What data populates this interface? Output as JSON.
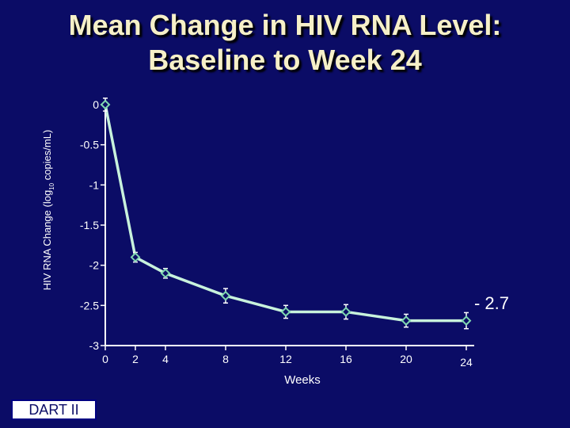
{
  "title": {
    "line1": "Mean Change in HIV RNA Level:",
    "line2": "Baseline to Week 24"
  },
  "badge": "DART II",
  "chart_data": {
    "type": "line",
    "title": "Mean Change in HIV RNA Level: Baseline to Week 24",
    "xlabel": "Weeks",
    "ylabel_main": "HIV RNA Change (log",
    "ylabel_sub": "10",
    "ylabel_tail": " copies/mL)",
    "x": [
      0,
      2,
      4,
      8,
      12,
      16,
      20,
      24
    ],
    "y": [
      0,
      -1.9,
      -2.1,
      -2.38,
      -2.58,
      -2.58,
      -2.69,
      -2.69
    ],
    "error": [
      0.08,
      0.06,
      0.06,
      0.09,
      0.08,
      0.09,
      0.08,
      0.1
    ],
    "xticks": [
      0,
      2,
      4,
      8,
      12,
      16,
      20,
      24
    ],
    "yticks": [
      0,
      -0.5,
      -1,
      -1.5,
      -2,
      -2.5,
      -3
    ],
    "ytick_labels": [
      "0",
      "-0.5",
      "-1",
      "-1.5",
      "-2",
      "-2.5",
      "-3"
    ],
    "xlim": [
      0,
      24
    ],
    "ylim": [
      -3,
      0
    ],
    "grid": false,
    "annotation": "- 2.7",
    "colors": {
      "line": "#c8f2dc",
      "marker": "#80d8b0",
      "text": "#ffffff",
      "title": "#f6f0c8",
      "background": "#0b0c66"
    }
  }
}
